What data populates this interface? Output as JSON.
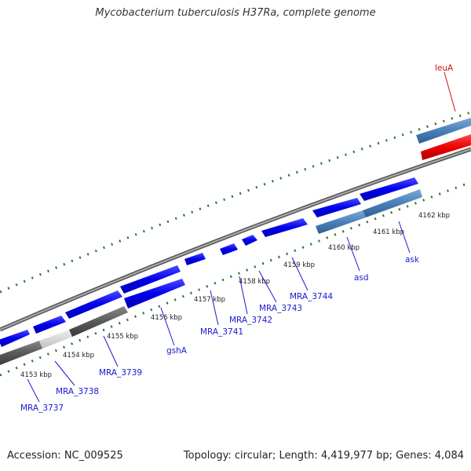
{
  "title": "Mycobacterium tuberculosis H37Ra, complete genome",
  "footer": {
    "accession": "Accession: NC_009525",
    "summary": "Topology: circular; Length: 4,419,977 bp; Genes: 4,084"
  },
  "map": {
    "kbp_labels": [
      "4153 kbp",
      "4154 kbp",
      "4155 kbp",
      "4156 kbp",
      "4157 kbp",
      "4158 kbp",
      "4159 kbp",
      "4160 kbp",
      "4161 kbp",
      "4162 kbp"
    ],
    "genes": [
      {
        "label": "MRA_3737",
        "color": "#1a1acc"
      },
      {
        "label": "MRA_3738",
        "color": "#1a1acc"
      },
      {
        "label": "MRA_3739",
        "color": "#1a1acc"
      },
      {
        "label": "gshA",
        "color": "#1a1acc"
      },
      {
        "label": "MRA_3741",
        "color": "#1a1acc"
      },
      {
        "label": "MRA_3742",
        "color": "#1a1acc"
      },
      {
        "label": "MRA_3743",
        "color": "#1a1acc"
      },
      {
        "label": "MRA_3744",
        "color": "#1a1acc"
      },
      {
        "label": "asd",
        "color": "#1a1acc"
      },
      {
        "label": "ask",
        "color": "#1a1acc"
      },
      {
        "label": "leuA",
        "color": "#cc1111"
      }
    ],
    "colors": {
      "cds_forward": "#0000ee",
      "cds_reverse_gray": "#5a5a5a",
      "cds_light_gray": "#d0d0d0",
      "cds_steel": "#4a80b8",
      "rna_red": "#ee0000",
      "backbone": "#888888",
      "tick": "#2a7a2a"
    }
  }
}
